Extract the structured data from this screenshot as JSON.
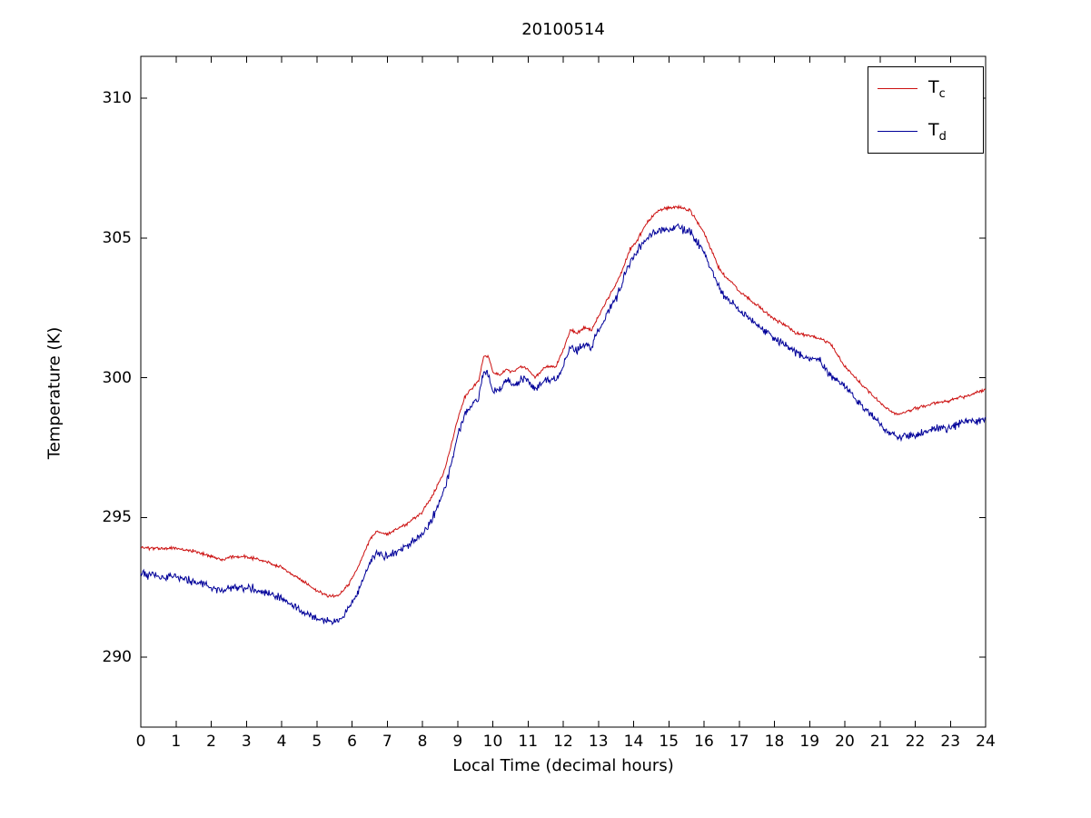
{
  "figure": {
    "title": "20100514",
    "xlabel": "Local Time (decimal hours)",
    "ylabel": "Temperature (K)"
  },
  "legend": {
    "entries": [
      {
        "main": "T",
        "sub": "c",
        "color": "#cc1111"
      },
      {
        "main": "T",
        "sub": "d",
        "color": "#000099"
      }
    ]
  },
  "chart_data": {
    "type": "line",
    "title": "20100514",
    "xlabel": "Local Time (decimal hours)",
    "ylabel": "Temperature (K)",
    "xlim": [
      0,
      24
    ],
    "ylim": [
      287.5,
      311.5
    ],
    "xticks": [
      0,
      1,
      2,
      3,
      4,
      5,
      6,
      7,
      8,
      9,
      10,
      11,
      12,
      13,
      14,
      15,
      16,
      17,
      18,
      19,
      20,
      21,
      22,
      23,
      24
    ],
    "yticks": [
      290,
      295,
      300,
      305,
      310
    ],
    "grid": false,
    "legend_position": "top-right",
    "series": [
      {
        "name": "T_c",
        "color": "#cc1111",
        "noise": 0.035,
        "points": [
          [
            0,
            293.9
          ],
          [
            0.5,
            293.9
          ],
          [
            1,
            293.9
          ],
          [
            1.5,
            293.8
          ],
          [
            2,
            293.6
          ],
          [
            2.3,
            293.5
          ],
          [
            2.6,
            293.6
          ],
          [
            3,
            293.6
          ],
          [
            3.3,
            293.5
          ],
          [
            3.6,
            293.4
          ],
          [
            4,
            293.2
          ],
          [
            4.5,
            292.8
          ],
          [
            5,
            292.4
          ],
          [
            5.3,
            292.2
          ],
          [
            5.6,
            292.2
          ],
          [
            5.9,
            292.6
          ],
          [
            6.2,
            293.3
          ],
          [
            6.5,
            294.2
          ],
          [
            6.7,
            294.5
          ],
          [
            7,
            294.4
          ],
          [
            7.3,
            294.6
          ],
          [
            7.6,
            294.8
          ],
          [
            8,
            295.2
          ],
          [
            8.3,
            295.8
          ],
          [
            8.6,
            296.6
          ],
          [
            8.8,
            297.5
          ],
          [
            9,
            298.5
          ],
          [
            9.2,
            299.3
          ],
          [
            9.4,
            299.6
          ],
          [
            9.6,
            299.9
          ],
          [
            9.75,
            300.8
          ],
          [
            9.9,
            300.7
          ],
          [
            10,
            300.2
          ],
          [
            10.2,
            300.1
          ],
          [
            10.4,
            300.3
          ],
          [
            10.6,
            300.2
          ],
          [
            10.8,
            300.4
          ],
          [
            11,
            300.3
          ],
          [
            11.2,
            300.0
          ],
          [
            11.5,
            300.4
          ],
          [
            11.8,
            300.4
          ],
          [
            12,
            301.0
          ],
          [
            12.2,
            301.7
          ],
          [
            12.4,
            301.6
          ],
          [
            12.6,
            301.8
          ],
          [
            12.8,
            301.7
          ],
          [
            13,
            302.2
          ],
          [
            13.3,
            302.9
          ],
          [
            13.6,
            303.6
          ],
          [
            13.9,
            304.6
          ],
          [
            14.1,
            304.9
          ],
          [
            14.3,
            305.4
          ],
          [
            14.5,
            305.7
          ],
          [
            14.7,
            306.0
          ],
          [
            15,
            306.1
          ],
          [
            15.3,
            306.1
          ],
          [
            15.6,
            306.0
          ],
          [
            15.8,
            305.6
          ],
          [
            16,
            305.2
          ],
          [
            16.2,
            304.6
          ],
          [
            16.4,
            304.0
          ],
          [
            16.6,
            303.6
          ],
          [
            16.8,
            303.4
          ],
          [
            17,
            303.1
          ],
          [
            17.3,
            302.8
          ],
          [
            17.6,
            302.5
          ],
          [
            18,
            302.1
          ],
          [
            18.3,
            301.9
          ],
          [
            18.6,
            301.6
          ],
          [
            19,
            301.5
          ],
          [
            19.3,
            301.4
          ],
          [
            19.6,
            301.2
          ],
          [
            20,
            300.4
          ],
          [
            20.3,
            300.0
          ],
          [
            20.6,
            299.6
          ],
          [
            21,
            299.1
          ],
          [
            21.3,
            298.8
          ],
          [
            21.5,
            298.7
          ],
          [
            21.8,
            298.8
          ],
          [
            22,
            298.9
          ],
          [
            22.3,
            299.0
          ],
          [
            22.6,
            299.1
          ],
          [
            23,
            299.2
          ],
          [
            23.3,
            299.3
          ],
          [
            23.6,
            299.4
          ],
          [
            24,
            299.6
          ]
        ]
      },
      {
        "name": "T_d",
        "color": "#000099",
        "noise": 0.09,
        "points": [
          [
            0,
            293.0
          ],
          [
            0.5,
            292.9
          ],
          [
            1,
            292.9
          ],
          [
            1.5,
            292.7
          ],
          [
            2,
            292.5
          ],
          [
            2.3,
            292.4
          ],
          [
            2.6,
            292.5
          ],
          [
            3,
            292.5
          ],
          [
            3.3,
            292.4
          ],
          [
            3.6,
            292.3
          ],
          [
            4,
            292.1
          ],
          [
            4.5,
            291.7
          ],
          [
            5,
            291.4
          ],
          [
            5.3,
            291.3
          ],
          [
            5.6,
            291.3
          ],
          [
            5.9,
            291.7
          ],
          [
            6.2,
            292.4
          ],
          [
            6.5,
            293.4
          ],
          [
            6.7,
            293.7
          ],
          [
            7,
            293.6
          ],
          [
            7.3,
            293.8
          ],
          [
            7.6,
            294.0
          ],
          [
            8,
            294.4
          ],
          [
            8.3,
            295.0
          ],
          [
            8.6,
            295.9
          ],
          [
            8.8,
            296.8
          ],
          [
            9,
            297.9
          ],
          [
            9.2,
            298.7
          ],
          [
            9.4,
            299.0
          ],
          [
            9.6,
            299.3
          ],
          [
            9.75,
            300.3
          ],
          [
            9.9,
            300.0
          ],
          [
            10,
            299.5
          ],
          [
            10.2,
            299.6
          ],
          [
            10.4,
            299.9
          ],
          [
            10.6,
            299.7
          ],
          [
            10.8,
            300.0
          ],
          [
            11,
            299.9
          ],
          [
            11.2,
            299.6
          ],
          [
            11.5,
            299.9
          ],
          [
            11.8,
            299.9
          ],
          [
            12,
            300.4
          ],
          [
            12.2,
            301.1
          ],
          [
            12.4,
            301.0
          ],
          [
            12.6,
            301.2
          ],
          [
            12.8,
            301.1
          ],
          [
            13,
            301.7
          ],
          [
            13.3,
            302.4
          ],
          [
            13.6,
            303.1
          ],
          [
            13.9,
            304.2
          ],
          [
            14.1,
            304.5
          ],
          [
            14.3,
            304.9
          ],
          [
            14.5,
            305.1
          ],
          [
            14.7,
            305.3
          ],
          [
            15,
            305.3
          ],
          [
            15.3,
            305.4
          ],
          [
            15.6,
            305.2
          ],
          [
            15.8,
            304.9
          ],
          [
            16,
            304.5
          ],
          [
            16.2,
            303.9
          ],
          [
            16.4,
            303.3
          ],
          [
            16.6,
            302.9
          ],
          [
            16.8,
            302.7
          ],
          [
            17,
            302.4
          ],
          [
            17.3,
            302.1
          ],
          [
            17.6,
            301.8
          ],
          [
            18,
            301.4
          ],
          [
            18.3,
            301.2
          ],
          [
            18.6,
            300.9
          ],
          [
            19,
            300.7
          ],
          [
            19.3,
            300.6
          ],
          [
            19.6,
            300.1
          ],
          [
            20,
            299.7
          ],
          [
            20.3,
            299.3
          ],
          [
            20.6,
            298.9
          ],
          [
            21,
            298.3
          ],
          [
            21.3,
            298.0
          ],
          [
            21.5,
            297.9
          ],
          [
            21.8,
            297.9
          ],
          [
            22,
            297.9
          ],
          [
            22.3,
            298.1
          ],
          [
            22.6,
            298.2
          ],
          [
            23,
            298.2
          ],
          [
            23.3,
            298.4
          ],
          [
            23.6,
            298.5
          ],
          [
            24,
            298.5
          ]
        ]
      }
    ]
  }
}
